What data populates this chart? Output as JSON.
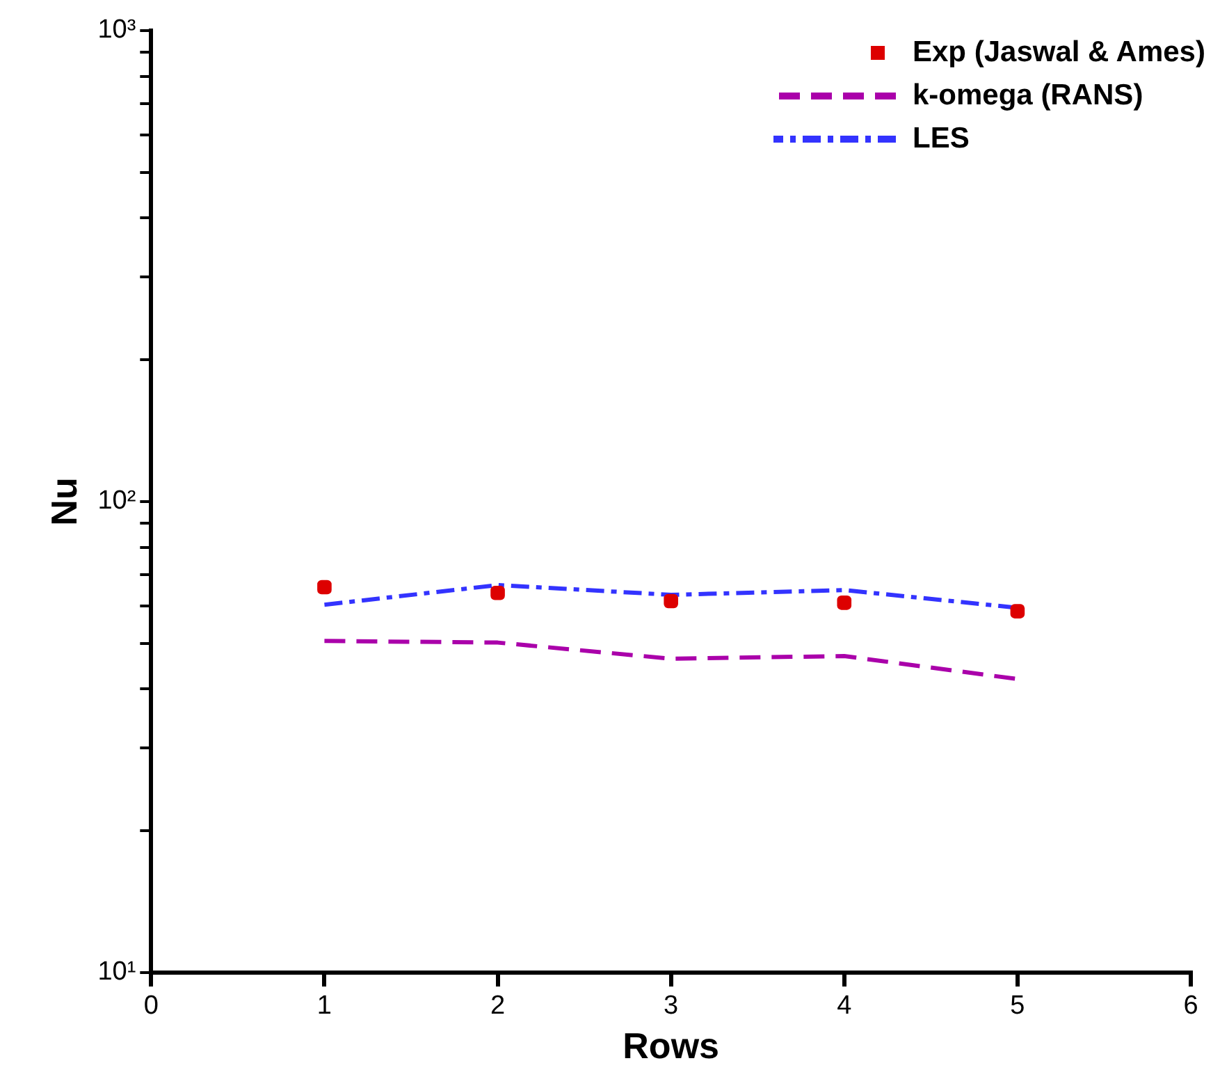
{
  "chart_data": {
    "type": "line",
    "xlabel": "Rows",
    "ylabel": "Nu",
    "log": "y",
    "x": [
      1,
      2,
      3,
      4,
      5
    ],
    "xlim": [
      0,
      6
    ],
    "xticks": [
      0,
      1,
      2,
      3,
      4,
      5,
      6
    ],
    "ylim": [
      10,
      1000
    ],
    "yticks": [
      {
        "value": 10,
        "label": "10¹"
      },
      {
        "value": 20,
        "label": null
      },
      {
        "value": 30,
        "label": null
      },
      {
        "value": 40,
        "label": null
      },
      {
        "value": 50,
        "label": null
      },
      {
        "value": 60,
        "label": null
      },
      {
        "value": 70,
        "label": null
      },
      {
        "value": 80,
        "label": null
      },
      {
        "value": 90,
        "label": null
      },
      {
        "value": 100,
        "label": "10²"
      },
      {
        "value": 200,
        "label": null
      },
      {
        "value": 300,
        "label": null
      },
      {
        "value": 400,
        "label": null
      },
      {
        "value": 500,
        "label": null
      },
      {
        "value": 600,
        "label": null
      },
      {
        "value": 700,
        "label": null
      },
      {
        "value": 800,
        "label": null
      },
      {
        "value": 900,
        "label": null
      },
      {
        "value": 1000,
        "label": "10³"
      }
    ],
    "grid": false,
    "legend": "top right",
    "series": [
      {
        "name": "Exp (Jaswal & Ames)",
        "type": "scatter",
        "marker": "square",
        "color": "#dd0000",
        "values": [
          65.8,
          64.0,
          61.5,
          61.0,
          58.5
        ]
      },
      {
        "name": "k-omega (RANS)",
        "line_style": "dashed",
        "marker": "none",
        "color": "#aa00aa",
        "values": [
          50.6,
          50.2,
          46.4,
          47.0,
          42.0
        ]
      },
      {
        "name": "LES",
        "line_style": "dashdot",
        "marker": "none",
        "color": "#3333ff",
        "values": [
          60.4,
          66.5,
          63.4,
          64.9,
          59.5
        ]
      }
    ]
  }
}
